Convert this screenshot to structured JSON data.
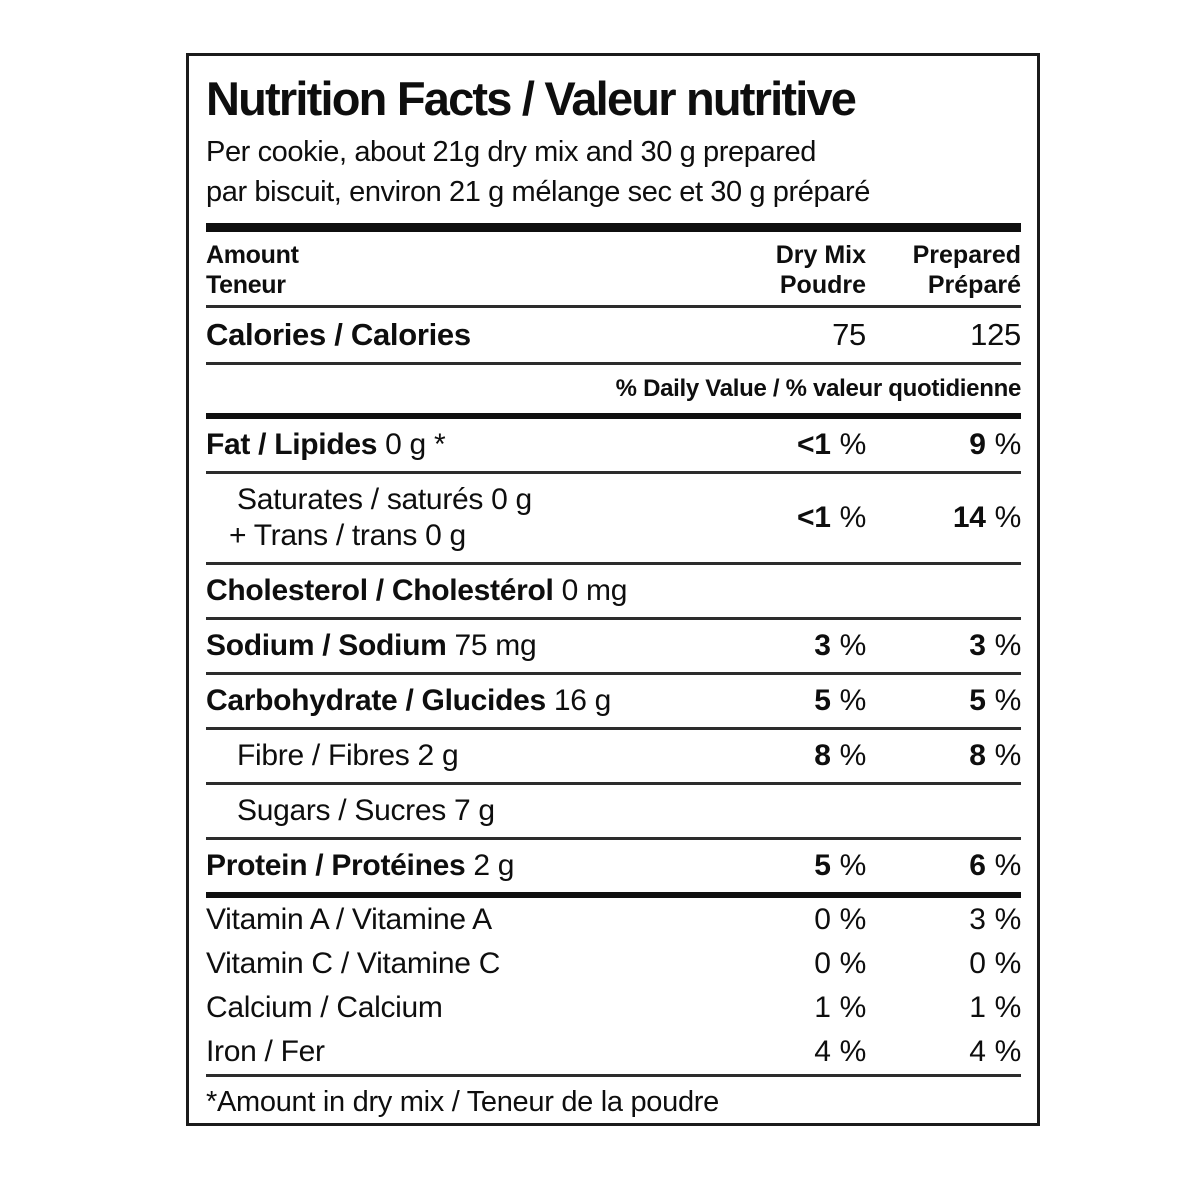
{
  "label": {
    "title": "Nutrition Facts / Valeur nutritive",
    "serving_en": "Per cookie, about 21g dry mix and 30 g prepared",
    "serving_fr": "par biscuit, environ 21 g mélange sec et 30 g préparé",
    "percent_sign": "%",
    "header": {
      "amount_en": "Amount",
      "amount_fr": "Teneur",
      "dry_en": "Dry Mix",
      "dry_fr": "Poudre",
      "prepared_en": "Prepared",
      "prepared_fr": "Préparé"
    },
    "calories": {
      "label": "Calories / Calories",
      "dry": "75",
      "prepared": "125"
    },
    "daily_value_heading": "% Daily Value / % valeur quotidienne",
    "rows": {
      "fat": {
        "bold": "Fat / Lipides",
        "rest": "0 g *",
        "dry": "<1",
        "prepared": "9"
      },
      "saturates": {
        "line1": "Saturates / saturés 0 g",
        "line2": "+ Trans / trans 0 g",
        "dry": "<1",
        "prepared": "14"
      },
      "cholesterol": {
        "bold": "Cholesterol / Cholestérol",
        "rest": "0 mg"
      },
      "sodium": {
        "bold": "Sodium / Sodium",
        "rest": "75 mg",
        "dry": "3",
        "prepared": "3"
      },
      "carbohydrate": {
        "bold": "Carbohydrate / Glucides",
        "rest": "16 g",
        "dry": "5",
        "prepared": "5"
      },
      "fibre": {
        "plain": "Fibre / Fibres 2 g",
        "dry": "8",
        "prepared": "8"
      },
      "sugars": {
        "plain": "Sugars / Sucres 7 g"
      },
      "protein": {
        "bold": "Protein / Protéines",
        "rest": "2 g",
        "dry": "5",
        "prepared": "6"
      }
    },
    "micronutrients": [
      {
        "label": "Vitamin A / Vitamine A",
        "dry": "0",
        "prepared": "3"
      },
      {
        "label": "Vitamin C / Vitamine C",
        "dry": "0",
        "prepared": "0"
      },
      {
        "label": "Calcium / Calcium",
        "dry": "1",
        "prepared": "1"
      },
      {
        "label": "Iron / Fer",
        "dry": "4",
        "prepared": "4"
      }
    ],
    "footnote": "*Amount in dry mix / Teneur de la poudre",
    "colors": {
      "text": "#0e0e0e",
      "border": "#1b1b1b",
      "background": "#ffffff"
    }
  }
}
